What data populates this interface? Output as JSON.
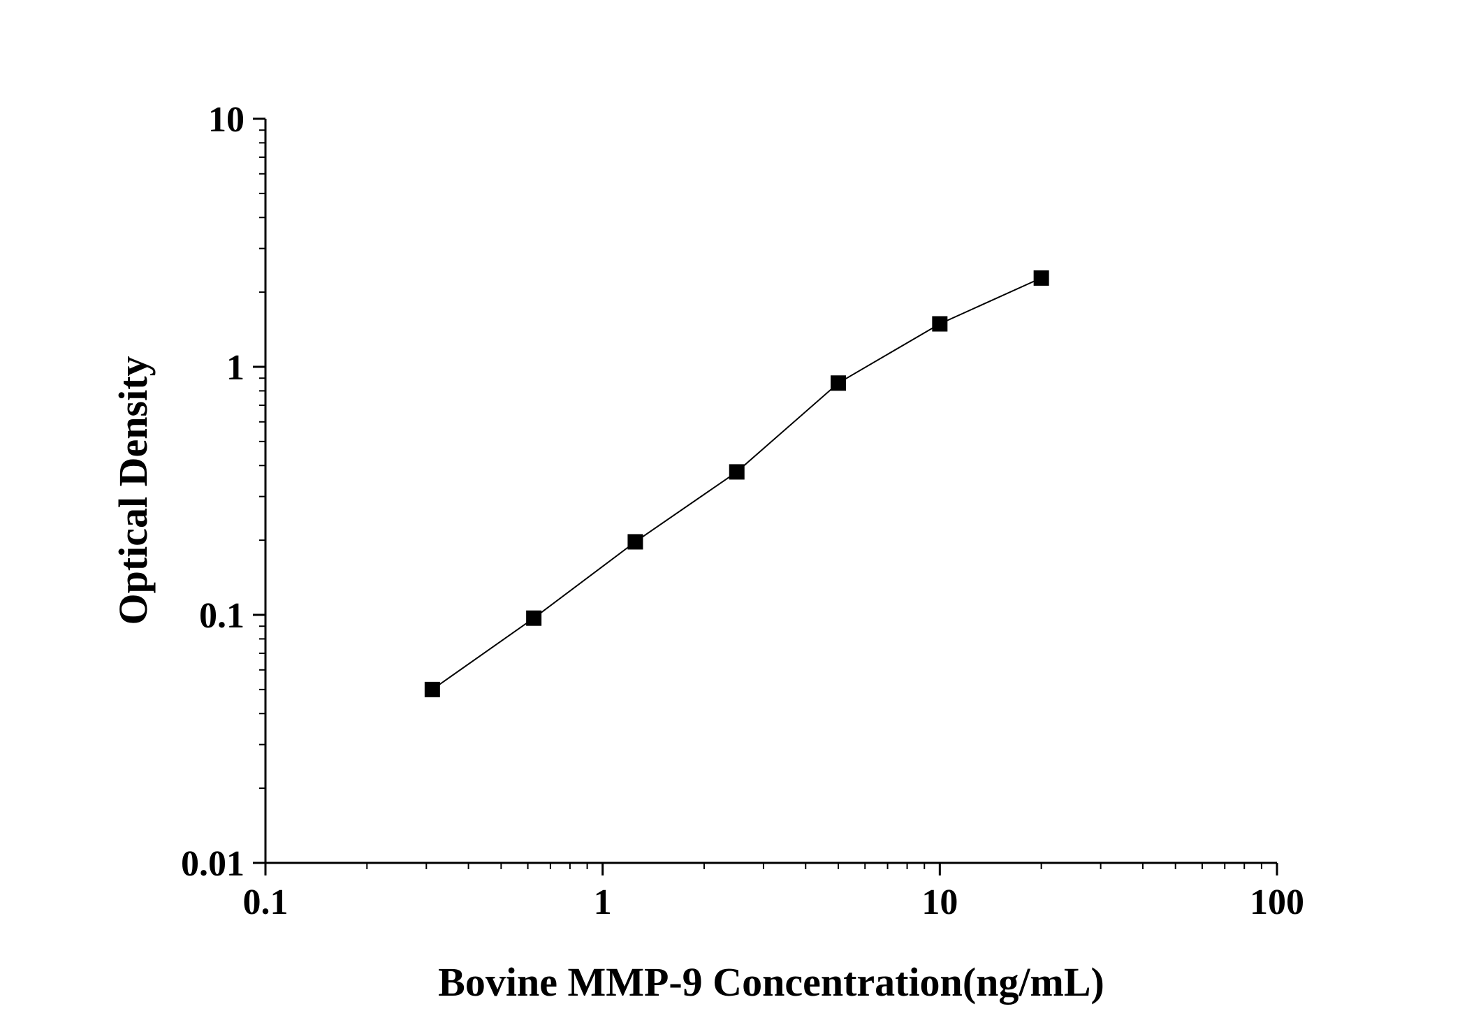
{
  "chart_data": {
    "type": "line",
    "title": "",
    "xlabel": "Bovine MMP-9 Concentration(ng/mL)",
    "ylabel": "Optical Density",
    "x_scale": "log",
    "y_scale": "log",
    "xlim": [
      0.1,
      100
    ],
    "ylim": [
      0.01,
      10
    ],
    "x_ticks": [
      {
        "value": 0.1,
        "label": "0.1"
      },
      {
        "value": 1,
        "label": "1"
      },
      {
        "value": 10,
        "label": "10"
      },
      {
        "value": 100,
        "label": "100"
      }
    ],
    "y_ticks": [
      {
        "value": 0.01,
        "label": "0.01"
      },
      {
        "value": 0.1,
        "label": "0.1"
      },
      {
        "value": 1,
        "label": "1"
      },
      {
        "value": 10,
        "label": "10"
      }
    ],
    "grid": false,
    "legend": "none",
    "marker": "square",
    "series": [
      {
        "x": [
          0.3125,
          0.625,
          1.25,
          2.5,
          5,
          10,
          20
        ],
        "y": [
          0.05,
          0.097,
          0.197,
          0.377,
          0.86,
          1.49,
          2.28
        ]
      }
    ],
    "colors": {
      "line": "#000000",
      "marker": "#000000",
      "axis": "#000000"
    }
  }
}
